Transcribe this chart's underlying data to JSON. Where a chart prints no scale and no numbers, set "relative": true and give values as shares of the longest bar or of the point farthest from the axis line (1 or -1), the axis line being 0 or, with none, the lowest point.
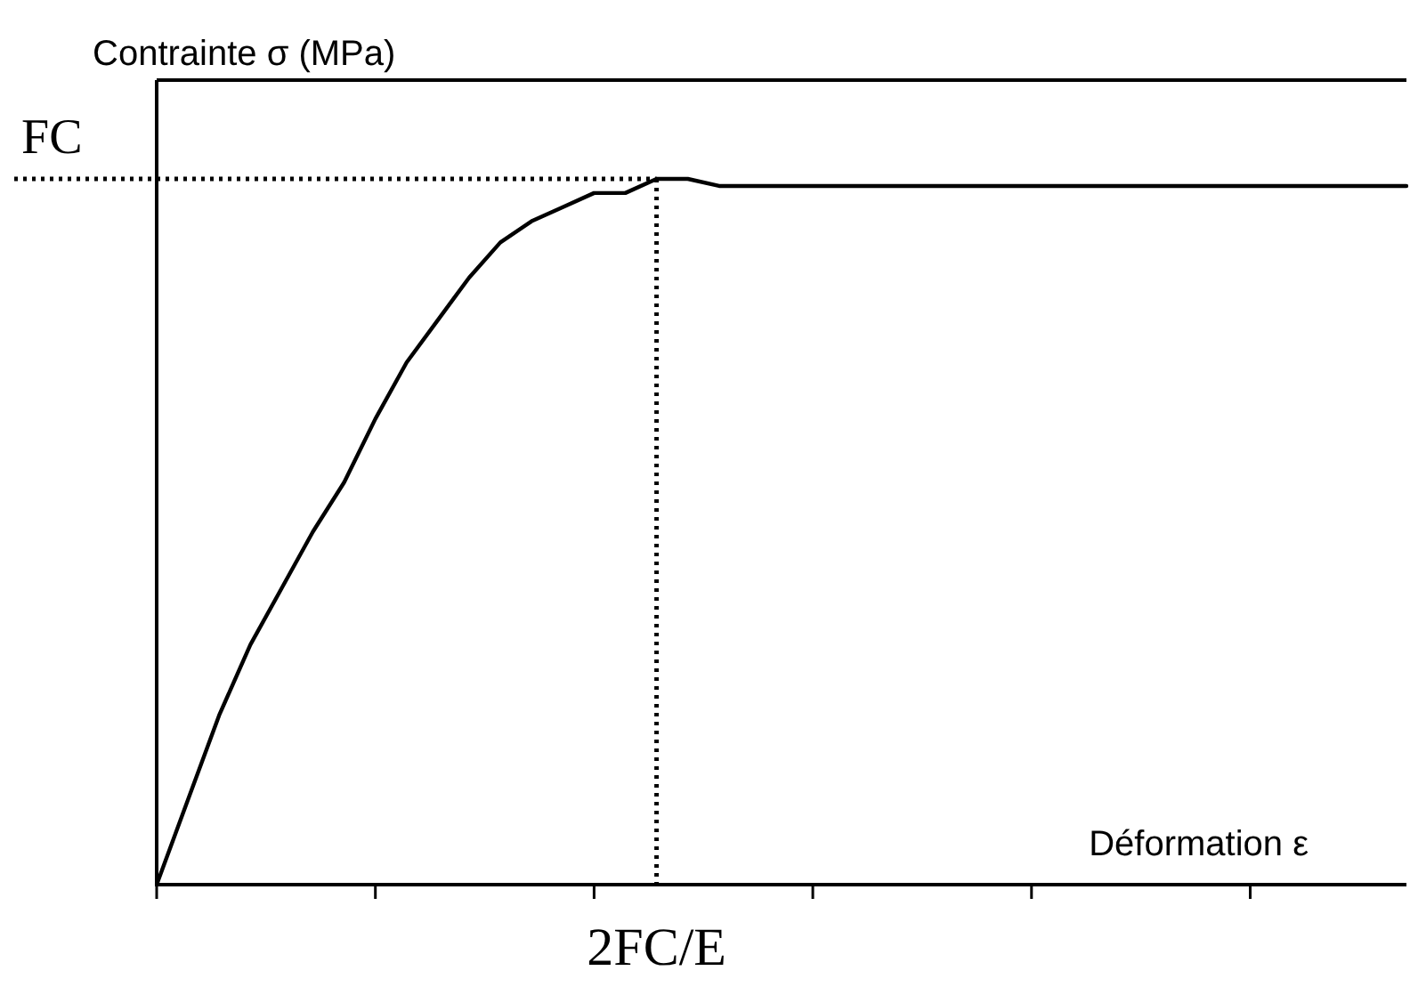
{
  "chart_data": {
    "type": "line",
    "relative": true,
    "ylabel": "Contrainte σ (MPa)",
    "xlabel": "Déformation ε",
    "categories": [
      null,
      null,
      null,
      null,
      null,
      null,
      null,
      null,
      null,
      null,
      null,
      null,
      null,
      null,
      null,
      null,
      null,
      null,
      null,
      null,
      null,
      null,
      null,
      null,
      null,
      null,
      null,
      null,
      null,
      null,
      null,
      null,
      null,
      null,
      null,
      null,
      null,
      null,
      null,
      null,
      null
    ],
    "series": [
      {
        "color": "#000000",
        "values": [
          0,
          0.12,
          0.24,
          0.34,
          0.42,
          0.5,
          0.57,
          0.66,
          0.74,
          0.8,
          0.86,
          0.91,
          0.94,
          0.96,
          0.98,
          0.98,
          1,
          1,
          0.99,
          0.99,
          0.99,
          0.99,
          0.99,
          0.99,
          0.99,
          0.99,
          0.99,
          0.99,
          0.99,
          0.99,
          0.99,
          0.99,
          0.99,
          0.99,
          0.99,
          0.99,
          0.99,
          0.99,
          0.99,
          0.99,
          0.99
        ]
      }
    ],
    "ref_lines": [
      {
        "axis": "y",
        "value": 1,
        "label": "FC",
        "line_style": "dotted",
        "color": "#000000"
      }
    ],
    "annotations": [
      "2FC/E"
    ],
    "marker": "none",
    "line_style": "solid",
    "legend": false
  }
}
